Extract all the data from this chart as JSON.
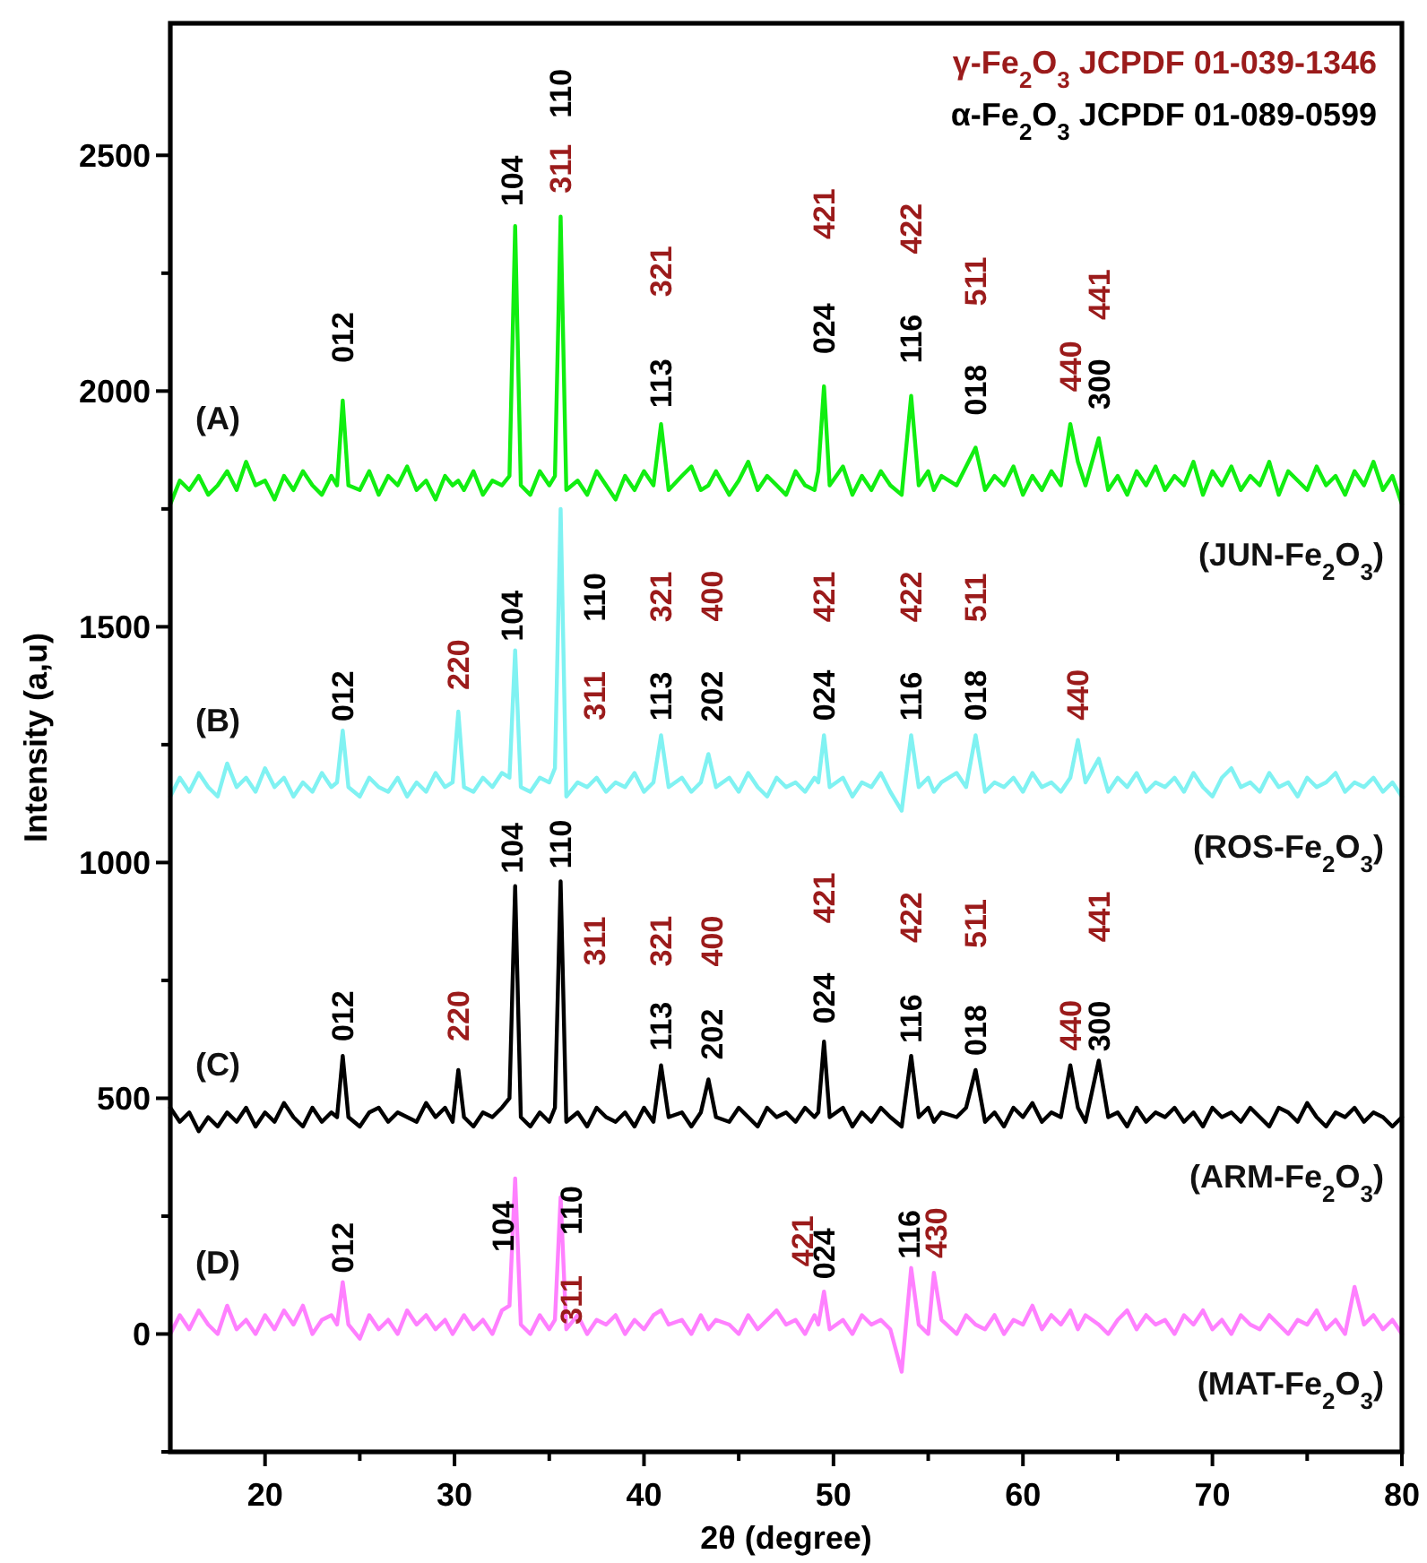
{
  "chart_data": {
    "type": "line",
    "xlabel": "2θ (degree)",
    "ylabel": "Intensity (a,u)",
    "xlim": [
      15,
      80
    ],
    "xticks": [
      20,
      {
        "value": 25,
        "label": null
      },
      30,
      {
        "value": 35,
        "label": null
      },
      40,
      {
        "value": 45,
        "label": null
      },
      50,
      {
        "value": 55,
        "label": null
      },
      60,
      {
        "value": 65,
        "label": null
      },
      70,
      {
        "value": 75,
        "label": null
      },
      80
    ],
    "ylim": [
      -250,
      2780
    ],
    "yticks": [
      {
        "value": -250,
        "label": null
      },
      0,
      {
        "value": 250,
        "label": null
      },
      500,
      {
        "value": 750,
        "label": null
      },
      1000,
      {
        "value": 1250,
        "label": null
      },
      1500,
      {
        "value": 1750,
        "label": null
      },
      2000,
      {
        "value": 2250,
        "label": null
      },
      2500
    ],
    "x": [
      15,
      15.5,
      16,
      16.5,
      17,
      17.5,
      18,
      18.5,
      19,
      19.5,
      20,
      20.5,
      21,
      21.5,
      22,
      22.5,
      23,
      23.5,
      23.8,
      24.1,
      24.4,
      25,
      25.5,
      26,
      26.5,
      27,
      27.5,
      28,
      28.5,
      29,
      29.5,
      29.9,
      30.2,
      30.5,
      31,
      31.5,
      32,
      32.5,
      32.9,
      33.2,
      33.5,
      34,
      34.5,
      35,
      35.3,
      35.6,
      35.9,
      36.5,
      37,
      37.5,
      38,
      38.5,
      39,
      39.5,
      40,
      40.5,
      40.9,
      41.3,
      42,
      42.5,
      43,
      43.4,
      43.8,
      44.5,
      45,
      45.5,
      46,
      46.5,
      47,
      47.5,
      48,
      48.5,
      49,
      49.2,
      49.5,
      49.8,
      50.5,
      51,
      51.5,
      52,
      52.5,
      53,
      53.6,
      54.1,
      54.5,
      55,
      55.3,
      55.7,
      56.5,
      57,
      57.5,
      58,
      58.5,
      59,
      59.5,
      60,
      60.5,
      61,
      61.5,
      62,
      62.5,
      62.9,
      63.3,
      64,
      64.5,
      65,
      65.5,
      66,
      66.5,
      67,
      67.5,
      68,
      68.5,
      69,
      69.5,
      70,
      70.5,
      71,
      71.5,
      72,
      72.5,
      73,
      73.5,
      74,
      74.5,
      75,
      75.5,
      76,
      76.5,
      77,
      77.5,
      78,
      78.5,
      79,
      79.5,
      80
    ],
    "series": [
      {
        "name": "(JUN-Fe$_{2}$O$_{3}$)",
        "color": "#11ee11",
        "values": [
          1760,
          1810,
          1790,
          1820,
          1780,
          1800,
          1830,
          1790,
          1850,
          1800,
          1810,
          1770,
          1820,
          1790,
          1830,
          1800,
          1780,
          1820,
          1800,
          1980,
          1800,
          1790,
          1830,
          1780,
          1820,
          1800,
          1840,
          1790,
          1810,
          1770,
          1820,
          1800,
          1810,
          1790,
          1830,
          1780,
          1810,
          1800,
          1820,
          2350,
          1800,
          1780,
          1830,
          1800,
          1820,
          2370,
          1790,
          1810,
          1780,
          1830,
          1800,
          1770,
          1820,
          1790,
          1830,
          1800,
          1930,
          1790,
          1820,
          1840,
          1790,
          1800,
          1830,
          1780,
          1810,
          1850,
          1790,
          1820,
          1800,
          1780,
          1830,
          1800,
          1790,
          1830,
          2010,
          1800,
          1840,
          1780,
          1820,
          1790,
          1830,
          1800,
          1780,
          1990,
          1800,
          1830,
          1790,
          1820,
          1800,
          1840,
          1880,
          1790,
          1820,
          1800,
          1840,
          1780,
          1820,
          1790,
          1830,
          1800,
          1930,
          1850,
          1800,
          1900,
          1790,
          1820,
          1780,
          1830,
          1800,
          1840,
          1790,
          1820,
          1800,
          1850,
          1780,
          1830,
          1800,
          1840,
          1790,
          1820,
          1800,
          1850,
          1780,
          1830,
          1810,
          1790,
          1840,
          1800,
          1820,
          1780,
          1830,
          1800,
          1850,
          1790,
          1820,
          1760
        ]
      },
      {
        "name": "(ROS-Fe$_{2}$O$_{3}$)",
        "color": "#80f2f2",
        "values": [
          1140,
          1180,
          1150,
          1190,
          1160,
          1140,
          1210,
          1160,
          1180,
          1150,
          1200,
          1160,
          1180,
          1140,
          1170,
          1150,
          1190,
          1160,
          1170,
          1280,
          1160,
          1140,
          1180,
          1160,
          1150,
          1180,
          1140,
          1170,
          1150,
          1190,
          1160,
          1170,
          1320,
          1160,
          1150,
          1180,
          1160,
          1190,
          1180,
          1450,
          1160,
          1150,
          1180,
          1170,
          1200,
          1750,
          1140,
          1170,
          1160,
          1180,
          1150,
          1170,
          1160,
          1190,
          1150,
          1170,
          1270,
          1160,
          1180,
          1150,
          1170,
          1230,
          1160,
          1180,
          1150,
          1190,
          1160,
          1140,
          1180,
          1160,
          1170,
          1150,
          1180,
          1170,
          1270,
          1160,
          1180,
          1140,
          1170,
          1160,
          1190,
          1150,
          1110,
          1270,
          1160,
          1180,
          1150,
          1170,
          1190,
          1160,
          1270,
          1150,
          1170,
          1160,
          1180,
          1150,
          1190,
          1160,
          1170,
          1150,
          1180,
          1260,
          1170,
          1220,
          1150,
          1180,
          1160,
          1190,
          1150,
          1170,
          1160,
          1180,
          1150,
          1190,
          1160,
          1140,
          1180,
          1200,
          1160,
          1170,
          1150,
          1190,
          1160,
          1170,
          1140,
          1180,
          1160,
          1170,
          1190,
          1150,
          1170,
          1160,
          1180,
          1150,
          1170,
          1140
        ]
      },
      {
        "name": "(ARM-Fe$_{2}$O$_{3}$)",
        "color": "#000000",
        "values": [
          480,
          450,
          470,
          430,
          460,
          440,
          470,
          450,
          480,
          440,
          470,
          450,
          490,
          460,
          440,
          480,
          450,
          470,
          460,
          590,
          460,
          440,
          470,
          480,
          450,
          470,
          460,
          450,
          490,
          460,
          480,
          450,
          560,
          460,
          440,
          470,
          460,
          480,
          500,
          950,
          460,
          440,
          470,
          450,
          480,
          960,
          450,
          470,
          440,
          480,
          460,
          450,
          470,
          440,
          480,
          450,
          570,
          460,
          470,
          440,
          470,
          540,
          460,
          450,
          480,
          460,
          440,
          480,
          460,
          470,
          450,
          480,
          460,
          470,
          620,
          460,
          480,
          440,
          470,
          450,
          480,
          460,
          440,
          590,
          460,
          480,
          450,
          470,
          460,
          480,
          560,
          450,
          470,
          440,
          480,
          460,
          490,
          450,
          470,
          460,
          570,
          480,
          450,
          580,
          460,
          470,
          440,
          480,
          450,
          470,
          460,
          480,
          450,
          470,
          440,
          480,
          460,
          470,
          450,
          480,
          460,
          440,
          480,
          470,
          450,
          490,
          460,
          440,
          470,
          460,
          480,
          450,
          470,
          460,
          440,
          460
        ]
      },
      {
        "name": "(MAT-Fe$_{2}$O$_{3}$)",
        "color": "#ff80ff",
        "values": [
          0,
          40,
          10,
          50,
          20,
          0,
          60,
          10,
          30,
          0,
          40,
          10,
          50,
          20,
          60,
          0,
          30,
          40,
          20,
          110,
          20,
          -10,
          40,
          10,
          30,
          0,
          50,
          20,
          40,
          10,
          30,
          0,
          20,
          40,
          10,
          30,
          0,
          50,
          60,
          330,
          20,
          0,
          40,
          10,
          30,
          290,
          10,
          40,
          0,
          30,
          20,
          40,
          0,
          30,
          10,
          40,
          50,
          20,
          30,
          0,
          40,
          10,
          30,
          20,
          0,
          40,
          10,
          30,
          50,
          20,
          30,
          0,
          40,
          20,
          90,
          10,
          30,
          0,
          40,
          20,
          30,
          10,
          -80,
          140,
          20,
          0,
          130,
          30,
          0,
          40,
          20,
          10,
          40,
          0,
          30,
          20,
          60,
          10,
          40,
          20,
          50,
          10,
          40,
          20,
          0,
          30,
          50,
          10,
          40,
          20,
          30,
          0,
          40,
          20,
          50,
          10,
          30,
          0,
          40,
          20,
          10,
          40,
          20,
          0,
          30,
          20,
          50,
          10,
          30,
          0,
          100,
          20,
          40,
          10,
          30,
          0
        ]
      }
    ],
    "annotations": [
      "γ-Fe$_{2}$O$_{3}$ JCPDF 01-039-1346",
      "α-Fe$_{2}$O$_{3}$ JCPDF 01-089-0599",
      "(A)",
      "(B)",
      "(C)",
      "(D)",
      {
        "text": "012",
        "x": 24.1,
        "y": 1980
      },
      {
        "text": "104",
        "x": 33.2,
        "y": 2350
      },
      {
        "text": "311",
        "x": 35.6,
        "y": 2370
      },
      "110",
      {
        "text": "113",
        "x": 40.9,
        "y": 1930
      },
      "321",
      {
        "text": "024",
        "x": 49.5,
        "y": 2010
      },
      "421",
      {
        "text": "116",
        "x": 54.1,
        "y": 1990
      },
      "422",
      {
        "text": "018",
        "x": 57.5,
        "y": 1880
      },
      "511",
      {
        "text": "440",
        "x": 62.5,
        "y": 1930
      },
      {
        "text": "300",
        "x": 64.0,
        "y": 1900
      },
      "441",
      {
        "text": "012",
        "x": 24.1,
        "y": 1280
      },
      {
        "text": "220",
        "x": 30.2,
        "y": 1320
      },
      {
        "text": "104",
        "x": 33.2,
        "y": 1450
      },
      "311",
      {
        "text": "110",
        "x": 35.6,
        "y": 1750
      },
      {
        "text": "113",
        "x": 40.9,
        "y": 1270
      },
      "321",
      {
        "text": "202",
        "x": 43.4,
        "y": 1230
      },
      "400",
      {
        "text": "024",
        "x": 49.5,
        "y": 1270
      },
      "421",
      {
        "text": "116",
        "x": 54.1,
        "y": 1270
      },
      "422",
      {
        "text": "018",
        "x": 57.5,
        "y": 1270
      },
      "511",
      {
        "text": "440",
        "x": 62.9,
        "y": 1260
      },
      {
        "text": "012",
        "x": 24.1,
        "y": 590
      },
      {
        "text": "220",
        "x": 30.2,
        "y": 560
      },
      {
        "text": "104",
        "x": 33.2,
        "y": 950
      },
      {
        "text": "110",
        "x": 35.6,
        "y": 960
      },
      {
        "text": "311",
        "x": 35.6,
        "y": 960
      },
      {
        "text": "113",
        "x": 40.9,
        "y": 570
      },
      "321",
      {
        "text": "202",
        "x": 43.4,
        "y": 540
      },
      "400",
      {
        "text": "024",
        "x": 49.5,
        "y": 620
      },
      "421",
      {
        "text": "116",
        "x": 54.1,
        "y": 590
      },
      "422",
      {
        "text": "018",
        "x": 57.5,
        "y": 560
      },
      "511",
      {
        "text": "440",
        "x": 62.5,
        "y": 570
      },
      {
        "text": "300",
        "x": 64.0,
        "y": 580
      },
      "441",
      {
        "text": "012",
        "x": 24.1,
        "y": 110
      },
      {
        "text": "104",
        "x": 33.2,
        "y": 330
      },
      {
        "text": "311",
        "x": 35.6,
        "y": 290
      },
      {
        "text": "110",
        "x": 35.6,
        "y": 290
      },
      {
        "text": "421",
        "x": 49.5,
        "y": 90
      },
      {
        "text": "024",
        "x": 49.5,
        "y": 90
      },
      {
        "text": "116",
        "x": 54.1,
        "y": 140
      },
      {
        "text": "430",
        "x": 55.3,
        "y": 130
      }
    ]
  }
}
